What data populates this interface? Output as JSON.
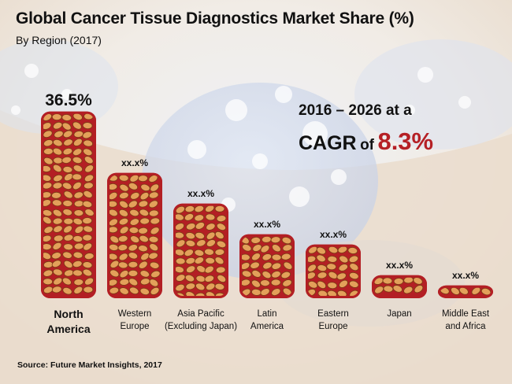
{
  "header": {
    "title": "Global Cancer Tissue Diagnostics Market Share (%)",
    "subtitle": "By Region (2017)"
  },
  "callout": {
    "line1": "2016 – 2026 at a",
    "cagr_word": "CAGR",
    "of_word": "of",
    "value": "8.3%"
  },
  "footer": {
    "source": "Source: Future Market Insights, 2017"
  },
  "colors": {
    "bar_outline": "#b31f24",
    "cell_fill": "#e3a05a",
    "cell_stroke": "#7a3b14",
    "accent": "#b52025"
  },
  "chart_data": {
    "type": "bar",
    "title": "Global Cancer Tissue Diagnostics Market Share (%)",
    "subtitle": "By Region (2017)",
    "categories": [
      [
        "North",
        "America"
      ],
      [
        "Western",
        "Europe"
      ],
      [
        "Asia Pacific",
        "(Excluding Japan)"
      ],
      [
        "Latin",
        "America"
      ],
      [
        "Eastern",
        "Europe"
      ],
      [
        "Japan"
      ],
      [
        "Middle East",
        "and Africa"
      ]
    ],
    "values": [
      36.5,
      24.5,
      18.5,
      12.5,
      10.5,
      4.5,
      2.5
    ],
    "value_labels": [
      "36.5%",
      "xx.x%",
      "xx.x%",
      "xx.x%",
      "xx.x%",
      "xx.x%",
      "xx.x%"
    ],
    "ylim": [
      0,
      40
    ],
    "grid": false,
    "legend": "none"
  }
}
